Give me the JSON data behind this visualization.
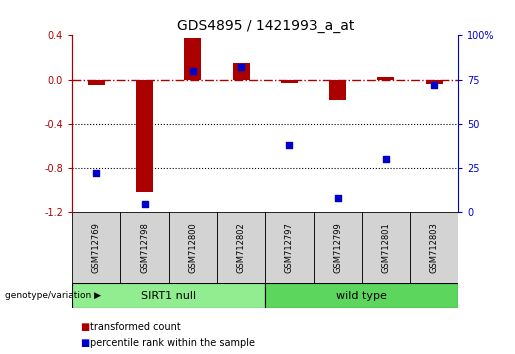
{
  "title": "GDS4895 / 1421993_a_at",
  "samples": [
    "GSM712769",
    "GSM712798",
    "GSM712800",
    "GSM712802",
    "GSM712797",
    "GSM712799",
    "GSM712801",
    "GSM712803"
  ],
  "transformed_count": [
    -0.05,
    -1.02,
    0.38,
    0.15,
    -0.03,
    -0.18,
    0.02,
    -0.04
  ],
  "percentile_rank": [
    22,
    5,
    80,
    82,
    38,
    8,
    30,
    72
  ],
  "groups": [
    {
      "label": "SIRT1 null",
      "start": 0,
      "end": 4,
      "color": "#90EE90"
    },
    {
      "label": "wild type",
      "start": 4,
      "end": 8,
      "color": "#5CD65C"
    }
  ],
  "group_label": "genotype/variation",
  "ylim_left": [
    -1.2,
    0.4
  ],
  "ylim_right": [
    0,
    100
  ],
  "yticks_left": [
    -1.2,
    -0.8,
    -0.4,
    0.0,
    0.4
  ],
  "yticks_right": [
    0,
    25,
    50,
    75,
    100
  ],
  "hline_y": 0.0,
  "dotted_lines": [
    -0.4,
    -0.8
  ],
  "bar_color": "#AA0000",
  "scatter_color": "#0000CC",
  "legend_bar_label": "transformed count",
  "legend_scatter_label": "percentile rank within the sample",
  "bar_width": 0.35,
  "scatter_size": 20,
  "title_fontsize": 10,
  "tick_fontsize": 7,
  "label_fontsize": 7,
  "sample_fontsize": 6,
  "group_fontsize": 8
}
